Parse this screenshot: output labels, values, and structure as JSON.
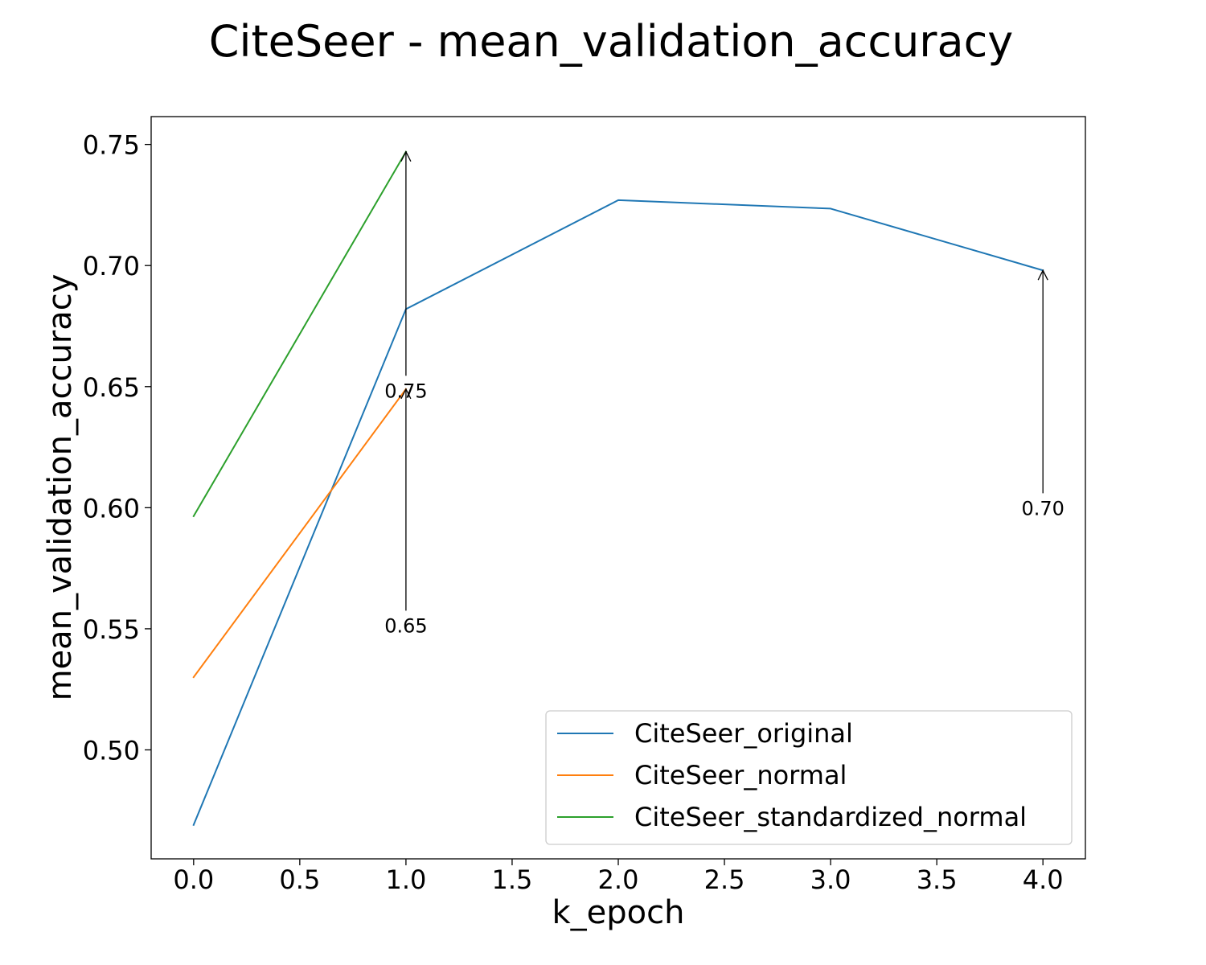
{
  "chart_data": {
    "type": "line",
    "title": "CiteSeer - mean_validation_accuracy",
    "xlabel": "k_epoch",
    "ylabel": "mean_validation_accuracy",
    "xlim": [
      -0.2,
      4.2
    ],
    "ylim": [
      0.455,
      0.7615
    ],
    "x_ticks": [
      "0.0",
      "0.5",
      "1.0",
      "1.5",
      "2.0",
      "2.5",
      "3.0",
      "3.5",
      "4.0"
    ],
    "y_ticks": [
      "0.50",
      "0.55",
      "0.60",
      "0.65",
      "0.70",
      "0.75"
    ],
    "grid": false,
    "legend_position": "lower-right",
    "series": [
      {
        "name": "CiteSeer_original",
        "color": "#1f77b4",
        "x": [
          0,
          1,
          2,
          3,
          4
        ],
        "y": [
          0.469,
          0.682,
          0.727,
          0.7235,
          0.698
        ]
      },
      {
        "name": "CiteSeer_normal",
        "color": "#ff7f0e",
        "x": [
          0,
          1
        ],
        "y": [
          0.53,
          0.649
        ]
      },
      {
        "name": "CiteSeer_standardized_normal",
        "color": "#2ca02c",
        "x": [
          0,
          1
        ],
        "y": [
          0.5965,
          0.747
        ]
      }
    ],
    "annotations": [
      {
        "text": "0.75",
        "x": 1,
        "y": 0.747,
        "text_y": 0.6485
      },
      {
        "text": "0.65",
        "x": 1,
        "y": 0.649,
        "text_y": 0.5515
      },
      {
        "text": "0.70",
        "x": 4,
        "y": 0.698,
        "text_y": 0.6
      }
    ]
  }
}
